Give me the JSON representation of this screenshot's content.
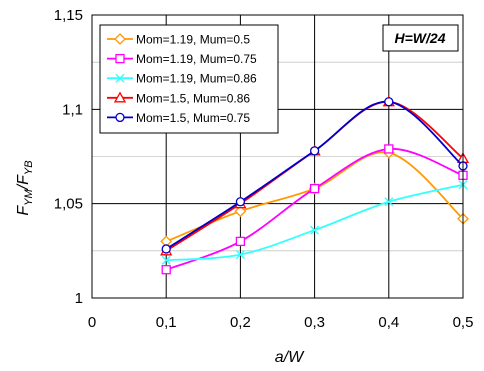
{
  "chart_data": {
    "type": "line",
    "annotation": "H=W/24",
    "xlabel": "a/W",
    "ylabel": {
      "main": "F",
      "main_sub": "YM",
      "slash": "/",
      "den": "F",
      "den_sub": "YB"
    },
    "xlim": [
      0,
      0.5
    ],
    "ylim": [
      1.0,
      1.15
    ],
    "x_ticks": [
      0,
      0.1,
      0.2,
      0.3,
      0.4,
      0.5
    ],
    "x_tick_labels": [
      "0",
      "0,1",
      "0,2",
      "0,3",
      "0,4",
      "0,5"
    ],
    "y_ticks": [
      1.0,
      1.05,
      1.1,
      1.15
    ],
    "y_tick_labels": [
      "1",
      "1,05",
      "1,1",
      "1,15"
    ],
    "grid": {
      "major": true,
      "minor_y": [
        1.025,
        1.075,
        1.125
      ]
    },
    "legend_position": "top-left",
    "x": [
      0.1,
      0.2,
      0.3,
      0.4,
      0.5
    ],
    "series": [
      {
        "name": "Mom=1.19, Mum=0.5",
        "color": "#ff9900",
        "marker": "diamond",
        "values": [
          1.03,
          1.046,
          1.058,
          1.077,
          1.042
        ]
      },
      {
        "name": "Mom=1.19, Mum=0.75",
        "color": "#ff00ff",
        "marker": "square",
        "values": [
          1.015,
          1.03,
          1.058,
          1.079,
          1.065
        ]
      },
      {
        "name": "Mom=1.19, Mum=0.86",
        "color": "#33ffff",
        "marker": "x",
        "values": [
          1.02,
          1.023,
          1.036,
          1.051,
          1.06
        ]
      },
      {
        "name": "Mom=1.5, Mum=0.86",
        "color": "#ff0000",
        "marker": "triangle",
        "values": [
          1.025,
          1.05,
          1.078,
          1.104,
          1.074
        ]
      },
      {
        "name": "Mom=1.5, Mum=0.75",
        "color": "#0000cc",
        "marker": "circle",
        "values": [
          1.026,
          1.051,
          1.078,
          1.104,
          1.07
        ]
      }
    ]
  }
}
